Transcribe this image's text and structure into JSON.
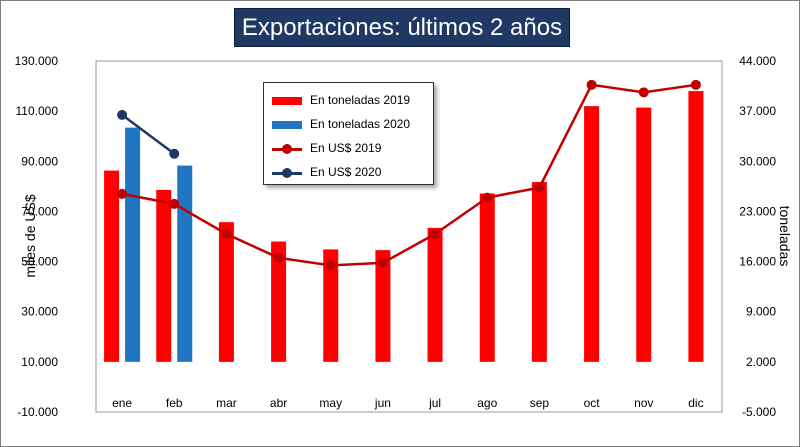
{
  "chart_data": {
    "type": "bar",
    "title": "Exportaciones: últimos 2 años",
    "ylabel": "miles de US$",
    "y2label": "toneladas",
    "ylim": [
      -10000,
      130000
    ],
    "y2lim": [
      -5000,
      44000
    ],
    "yticks": [
      "-10.000",
      "10.000",
      "30.000",
      "50.000",
      "70.000",
      "90.000",
      "110.000",
      "130.000"
    ],
    "y2ticks": [
      "-5.000",
      "2.000",
      "9.000",
      "16.000",
      "23.000",
      "30.000",
      "37.000",
      "44.000"
    ],
    "y2tick_values": [
      -5000,
      2000,
      9000,
      16000,
      23000,
      30000,
      37000,
      44000
    ],
    "categories": [
      "ene",
      "feb",
      "mar",
      "abr",
      "may",
      "jun",
      "jul",
      "ago",
      "sep",
      "oct",
      "nov",
      "dic"
    ],
    "series": [
      {
        "name": "En toneladas 2019",
        "kind": "bar",
        "axis": "right",
        "color": "#ff0000",
        "values": [
          28700,
          26000,
          21500,
          18800,
          17700,
          17600,
          20700,
          25500,
          27100,
          37700,
          37500,
          39800
        ]
      },
      {
        "name": "En toneladas 2020",
        "kind": "bar",
        "axis": "right",
        "color": "#1f77c4",
        "values": [
          34700,
          29400,
          null,
          null,
          null,
          null,
          null,
          null,
          null,
          null,
          null,
          null
        ]
      },
      {
        "name": "En US$ 2019",
        "kind": "line",
        "axis": "left",
        "color": "#c00000",
        "values": [
          77000,
          73000,
          61000,
          51500,
          48500,
          49500,
          61000,
          75500,
          79500,
          120500,
          117500,
          120500
        ]
      },
      {
        "name": "En US$ 2020",
        "kind": "line",
        "axis": "left",
        "color": "#1f3864",
        "values": [
          108500,
          93000,
          null,
          null,
          null,
          null,
          null,
          null,
          null,
          null,
          null,
          null
        ]
      }
    ],
    "legend_position": "top-left"
  }
}
